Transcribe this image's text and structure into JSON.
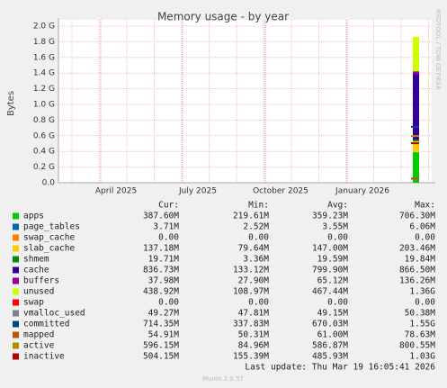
{
  "chart_data": {
    "type": "stacked-area",
    "title": "Memory usage - by year",
    "y_label": "Bytes",
    "side_text": "RRDTOOL / TOBI OETIKER",
    "xlabels": [
      "April 2025",
      "July 2025",
      "October 2025",
      "January 2026"
    ],
    "ylim": [
      0,
      2.0
    ],
    "yticks": [
      {
        "value": 0,
        "label": "0.0"
      },
      {
        "value": 0.2,
        "label": "0.2 G"
      },
      {
        "value": 0.4,
        "label": "0.4 G"
      },
      {
        "value": 0.6,
        "label": "0.6 G"
      },
      {
        "value": 0.8,
        "label": "0.8 G"
      },
      {
        "value": 1.0,
        "label": "1.0 G"
      },
      {
        "value": 1.2,
        "label": "1.2 G"
      },
      {
        "value": 1.4,
        "label": "1.4 G"
      },
      {
        "value": 1.6,
        "label": "1.6 G"
      },
      {
        "value": 1.8,
        "label": "1.8 G"
      },
      {
        "value": 2.0,
        "label": "2.0 G"
      }
    ],
    "columns": [
      "Cur:",
      "Min:",
      "Avg:",
      "Max:"
    ],
    "series": [
      {
        "name": "apps",
        "color": "#00cc00",
        "kind": "stack",
        "values": [
          0.3876
        ],
        "value_labels": [
          "387.60M"
        ],
        "min": "219.61M",
        "avg": "359.23M",
        "max": "706.30M"
      },
      {
        "name": "page_tables",
        "color": "#0066b3",
        "kind": "stack",
        "values": [
          0.00371
        ],
        "value_labels": [
          "3.71M"
        ],
        "min": "2.52M",
        "avg": "3.55M",
        "max": "6.06M"
      },
      {
        "name": "swap_cache",
        "color": "#ff8000",
        "kind": "stack",
        "values": [
          0
        ],
        "value_labels": [
          "0.00"
        ],
        "min": "0.00",
        "avg": "0.00",
        "max": "0.00"
      },
      {
        "name": "slab_cache",
        "color": "#ffcc00",
        "kind": "stack",
        "values": [
          0.13718
        ],
        "value_labels": [
          "137.18M"
        ],
        "min": "79.64M",
        "avg": "147.00M",
        "max": "203.46M"
      },
      {
        "name": "shmem",
        "color": "#008f00",
        "kind": "stack",
        "values": [
          0.01971
        ],
        "value_labels": [
          "19.71M"
        ],
        "min": "3.36M",
        "avg": "19.59M",
        "max": "19.84M"
      },
      {
        "name": "cache",
        "color": "#330099",
        "kind": "stack",
        "values": [
          0.83673
        ],
        "value_labels": [
          "836.73M"
        ],
        "min": "133.12M",
        "avg": "799.90M",
        "max": "866.50M"
      },
      {
        "name": "buffers",
        "color": "#990099",
        "kind": "stack",
        "values": [
          0.03798
        ],
        "value_labels": [
          "37.98M"
        ],
        "min": "27.90M",
        "avg": "65.12M",
        "max": "136.26M"
      },
      {
        "name": "unused",
        "color": "#ccff00",
        "kind": "stack",
        "values": [
          0.43892
        ],
        "value_labels": [
          "438.92M"
        ],
        "min": "108.97M",
        "avg": "467.44M",
        "max": "1.36G"
      },
      {
        "name": "swap",
        "color": "#ff0000",
        "kind": "stack",
        "values": [
          0
        ],
        "value_labels": [
          "0.00"
        ],
        "min": "0.00",
        "avg": "0.00",
        "max": "0.00"
      },
      {
        "name": "vmalloc_used",
        "color": "#808080",
        "kind": "line",
        "values": [
          0.04927
        ],
        "value_labels": [
          "49.27M"
        ],
        "min": "47.81M",
        "avg": "49.15M",
        "max": "50.38M"
      },
      {
        "name": "committed",
        "color": "#00487d",
        "kind": "line",
        "values": [
          0.71435
        ],
        "value_labels": [
          "714.35M"
        ],
        "min": "337.83M",
        "avg": "670.03M",
        "max": "1.55G"
      },
      {
        "name": "mapped",
        "color": "#b35a00",
        "kind": "line",
        "values": [
          0.05491
        ],
        "value_labels": [
          "54.91M"
        ],
        "min": "50.31M",
        "avg": "61.00M",
        "max": "78.63M"
      },
      {
        "name": "active",
        "color": "#b38f00",
        "kind": "line",
        "values": [
          0.59615
        ],
        "value_labels": [
          "596.15M"
        ],
        "min": "84.96M",
        "avg": "586.87M",
        "max": "800.55M"
      },
      {
        "name": "inactive",
        "color": "#b30000",
        "kind": "line",
        "values": [
          0.50415
        ],
        "value_labels": [
          "504.15M"
        ],
        "min": "155.39M",
        "avg": "485.93M",
        "max": "1.03G"
      }
    ],
    "last_update": "Last update: Thu Mar 19 16:05:41 2026",
    "footer": "Munin 2.0.57",
    "grid": true
  }
}
